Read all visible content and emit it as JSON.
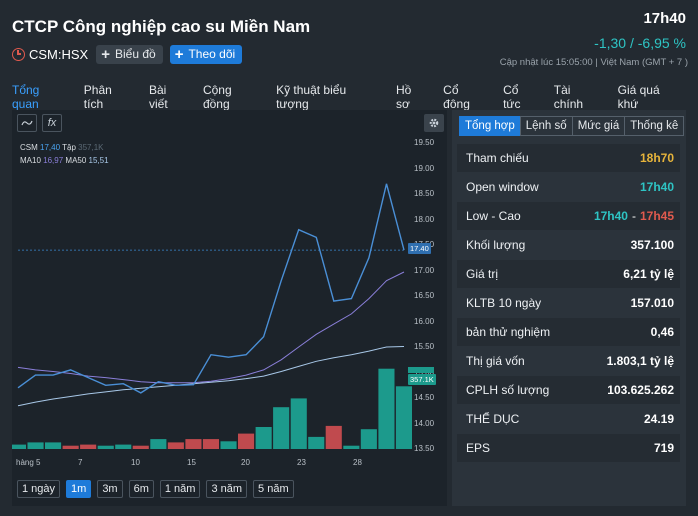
{
  "header": {
    "company_name": "CTCP Công nghiệp cao su Miền Nam",
    "ticker": "CSM:HSX",
    "chart_button": "Biểu đồ",
    "follow_button": "Theo dõi",
    "price": "17h40",
    "change": "-1,30 / -6,95 %",
    "updated": "Cập nhật lúc   15:05:00 | Việt Nam (GMT + 7 )"
  },
  "nav": {
    "items": [
      "Tổng quan",
      "Phân tích",
      "Bài viết",
      "Cộng đồng",
      "Kỹ thuật biểu tượng",
      "Hồ sơ",
      "Cổ đông",
      "Cổ tức",
      "Tài chính",
      "Giá quá khứ"
    ]
  },
  "chart": {
    "tools": {
      "draw_icon": "line-draw-icon",
      "fx_label": "fx",
      "settings_icon": "gear-icon"
    },
    "legend": {
      "symbol": "CSM",
      "price": "17,40",
      "volume_label": "Tập",
      "volume": "357,1K",
      "ma10_label": "MA10",
      "ma10": "16,97",
      "ma50_label": "MA50",
      "ma50": "15,51"
    },
    "price_tag": "17.40",
    "volume_tag": "357.1K",
    "periods": [
      "1 ngày",
      "1m",
      "3m",
      "6m",
      "1 năm",
      "3 năm",
      "5 năm"
    ],
    "active_period": "1m"
  },
  "chart_data": {
    "type": "line",
    "y_ticks": [
      "19.50",
      "19.00",
      "18.50",
      "18.00",
      "17.50",
      "17.00",
      "16.50",
      "16.00",
      "15.50",
      "15.00",
      "14.50",
      "14.00",
      "13.50"
    ],
    "x_ticks": [
      "hàng 5",
      "7",
      "10",
      "15",
      "20",
      "23",
      "28"
    ],
    "ylim": [
      13.5,
      19.5
    ],
    "last_price_line": 17.4,
    "price": [
      14.7,
      14.95,
      14.95,
      15.05,
      14.9,
      14.75,
      14.78,
      14.6,
      14.82,
      14.75,
      14.76,
      15.35,
      15.3,
      15.35,
      15.7,
      16.8,
      17.8,
      17.65,
      16.4,
      16.45,
      17.25,
      18.7,
      17.4
    ],
    "ma10": [
      15.1,
      15.05,
      15.02,
      14.98,
      14.93,
      14.9,
      14.86,
      14.82,
      14.8,
      14.8,
      14.8,
      14.83,
      14.88,
      14.95,
      15.05,
      15.25,
      15.5,
      15.75,
      15.95,
      16.15,
      16.45,
      16.8,
      16.97
    ],
    "ma50": [
      14.35,
      14.42,
      14.48,
      14.53,
      14.58,
      14.62,
      14.66,
      14.69,
      14.72,
      14.75,
      14.78,
      14.81,
      14.84,
      14.88,
      14.93,
      15.02,
      15.12,
      15.22,
      15.29,
      15.35,
      15.42,
      15.5,
      15.51
    ],
    "volume_ratio": [
      0.04,
      0.06,
      0.06,
      0.03,
      0.04,
      0.03,
      0.04,
      0.03,
      0.09,
      0.06,
      0.09,
      0.09,
      0.07,
      0.14,
      0.2,
      0.38,
      0.46,
      0.11,
      0.21,
      0.03,
      0.18,
      0.73,
      0.57
    ],
    "volume_color": [
      "up",
      "up",
      "up",
      "down",
      "down",
      "up",
      "up",
      "down",
      "up",
      "down",
      "down",
      "down",
      "up",
      "down",
      "up",
      "up",
      "up",
      "up",
      "down",
      "up",
      "up",
      "up",
      "up"
    ]
  },
  "stats": {
    "tabs": [
      "Tổng hợp",
      "Lệnh số",
      "Mức giá",
      "Thống kê"
    ],
    "rows": [
      {
        "label": "Tham chiếu",
        "value": "18h70"
      },
      {
        "label": "Open window",
        "value": "17h40"
      },
      {
        "label": "Low - Cao",
        "low": "17h40",
        "high": "17h45"
      },
      {
        "label": "Khối lượng",
        "value": "357.100"
      },
      {
        "label": "Giá trị",
        "value": "6,21 tỷ lệ"
      },
      {
        "label": "KLTB 10 ngày",
        "value": "157.010"
      },
      {
        "label": "bản thử nghiệm",
        "value": "0,46"
      },
      {
        "label": "Thị giá vốn",
        "value": "1.803,1 tỷ lệ"
      },
      {
        "label": "CPLH số lượng",
        "value": "103.625.262"
      },
      {
        "label": "THỂ DỤC",
        "value": "24.19"
      },
      {
        "label": "EPS",
        "value": "719"
      }
    ]
  },
  "colors": {
    "accent": "#1e7bd9",
    "price_line": "#4a8fd6",
    "ma10_line": "#8a7fd9",
    "ma50_line": "#a8c8e8",
    "volume_up": "#1c9a8c",
    "volume_down": "#c04a4e",
    "reference": "#e7b43b",
    "positive": "#2ec4c4",
    "negative": "#e05a4e"
  }
}
